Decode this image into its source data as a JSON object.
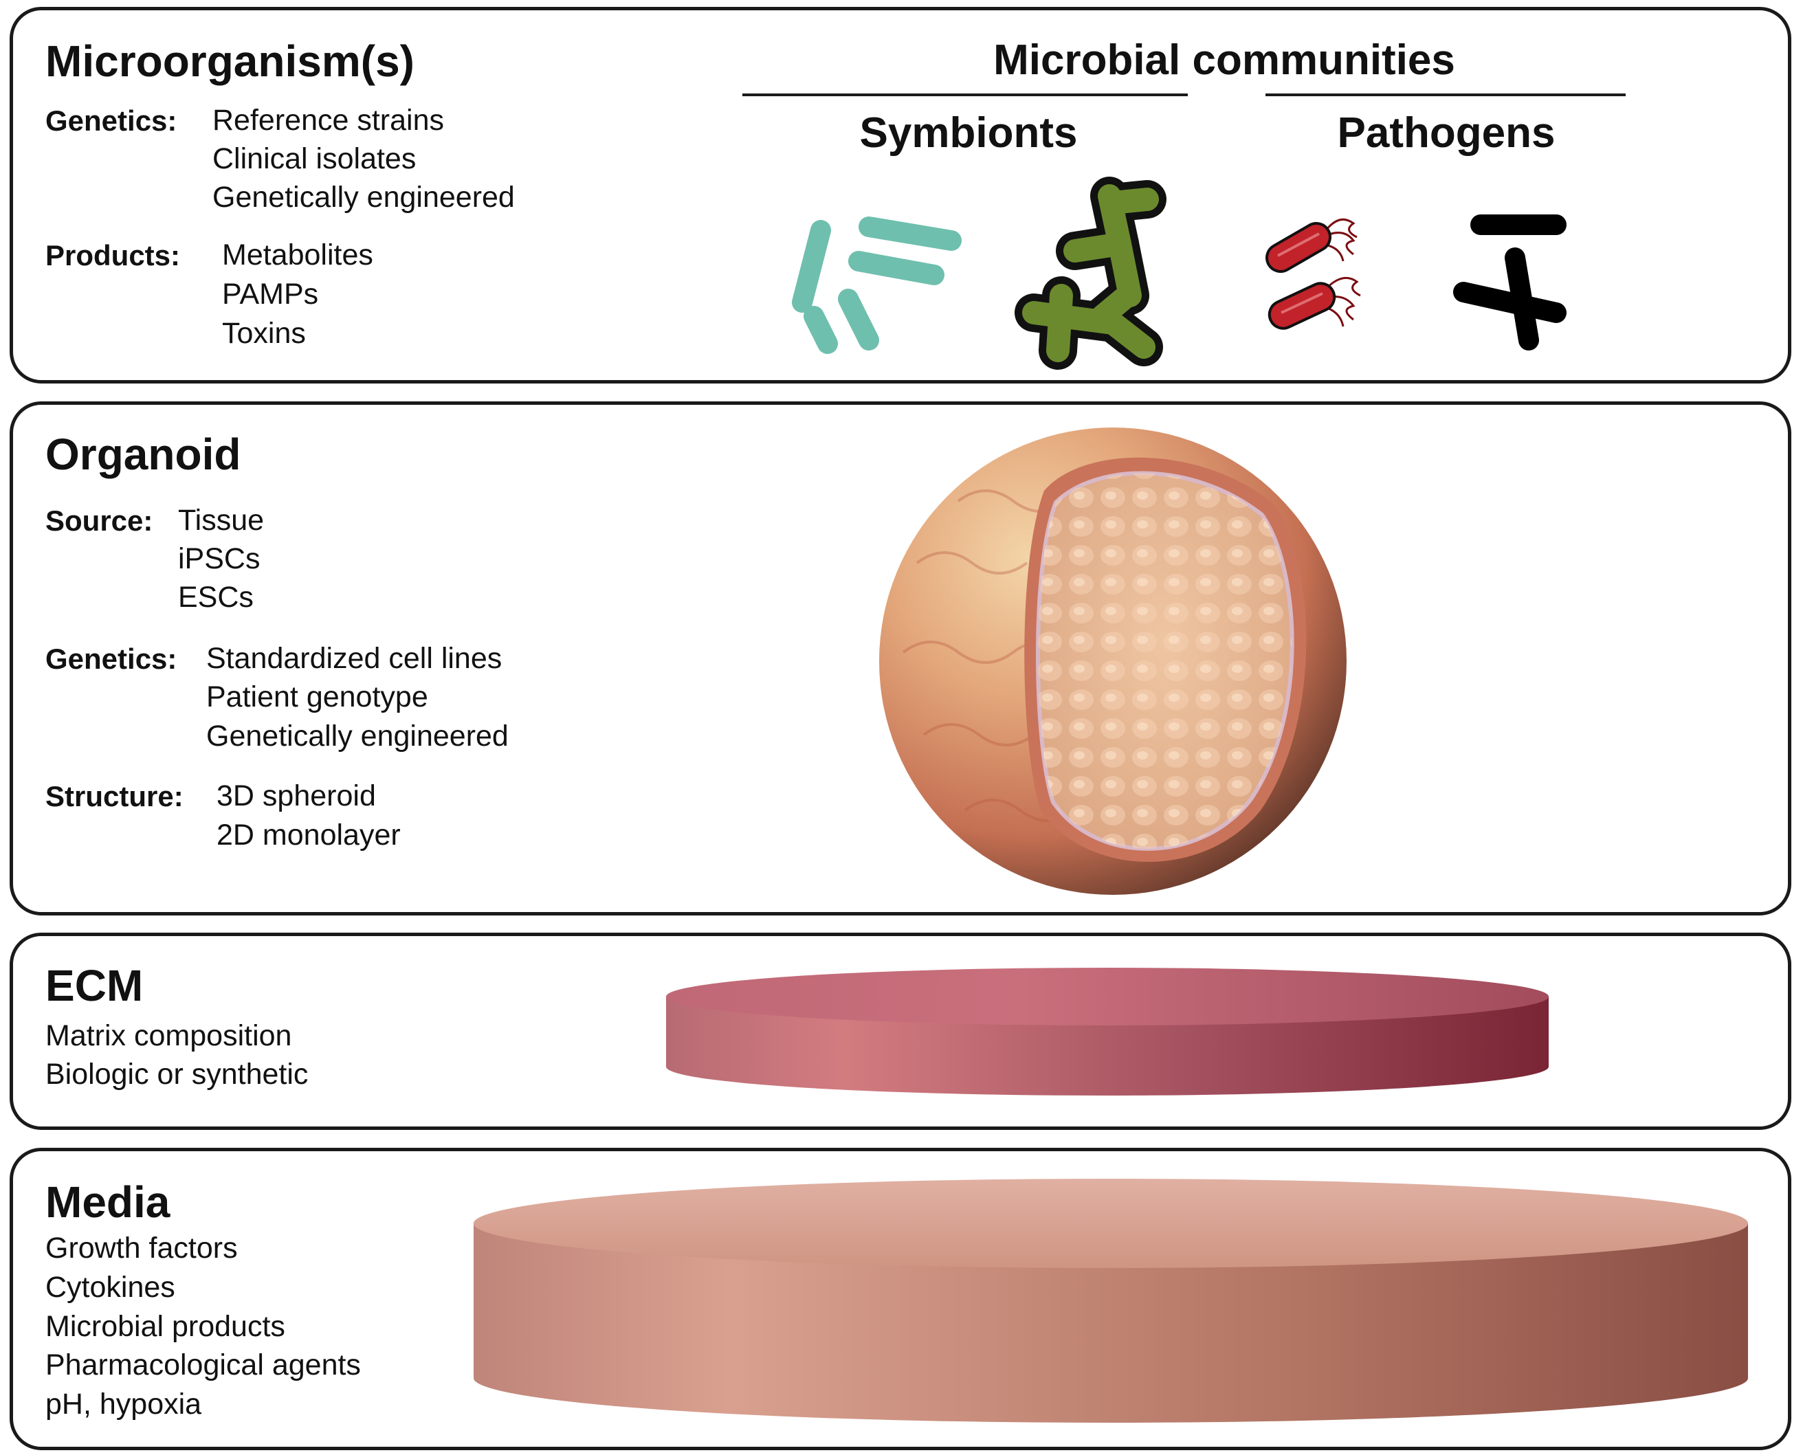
{
  "microorganism": {
    "title": "Microorganism(s)",
    "genetics_label": "Genetics:",
    "genetics_items": [
      "Reference strains",
      "Clinical isolates",
      "Genetically engineered"
    ],
    "products_label": "Products:",
    "products_items": [
      "Metabolites",
      "PAMPs",
      "Toxins"
    ],
    "communities_heading": "Microbial communities",
    "symbionts_label": "Symbionts",
    "pathogens_label": "Pathogens"
  },
  "organoid": {
    "title": "Organoid",
    "source_label": "Source:",
    "source_items": [
      "Tissue",
      "iPSCs",
      "ESCs"
    ],
    "genetics_label": "Genetics:",
    "genetics_items": [
      "Standardized cell lines",
      "Patient genotype",
      "Genetically engineered"
    ],
    "structure_label": "Structure:",
    "structure_items": [
      "3D spheroid",
      "2D monolayer"
    ]
  },
  "ecm": {
    "title": "ECM",
    "items": [
      "Matrix composition",
      "Biologic or synthetic"
    ]
  },
  "media": {
    "title": "Media",
    "items": [
      "Growth factors",
      "Cytokines",
      "Microbial products",
      "Pharmacological agents",
      "pH, hypoxia"
    ]
  },
  "colors": {
    "panel_border": "#1a1a1a",
    "symbiont_rod": "#6fbfae",
    "symbiont_branch": "#6b8a2e",
    "pathogen_red": "#c2222a",
    "pathogen_black": "#000000",
    "ecm_disc": "#b35a68",
    "media_disc": "#c98a7a",
    "organoid_shell": "#d9936b",
    "organoid_interior": "#e6b592"
  },
  "icons": [
    "rod-bacteria-icon",
    "branched-bacteria-icon",
    "flagellated-bacteria-icon",
    "black-bacteria-icon",
    "organoid-sphere-illustration",
    "ecm-disc-illustration",
    "media-disc-illustration"
  ]
}
